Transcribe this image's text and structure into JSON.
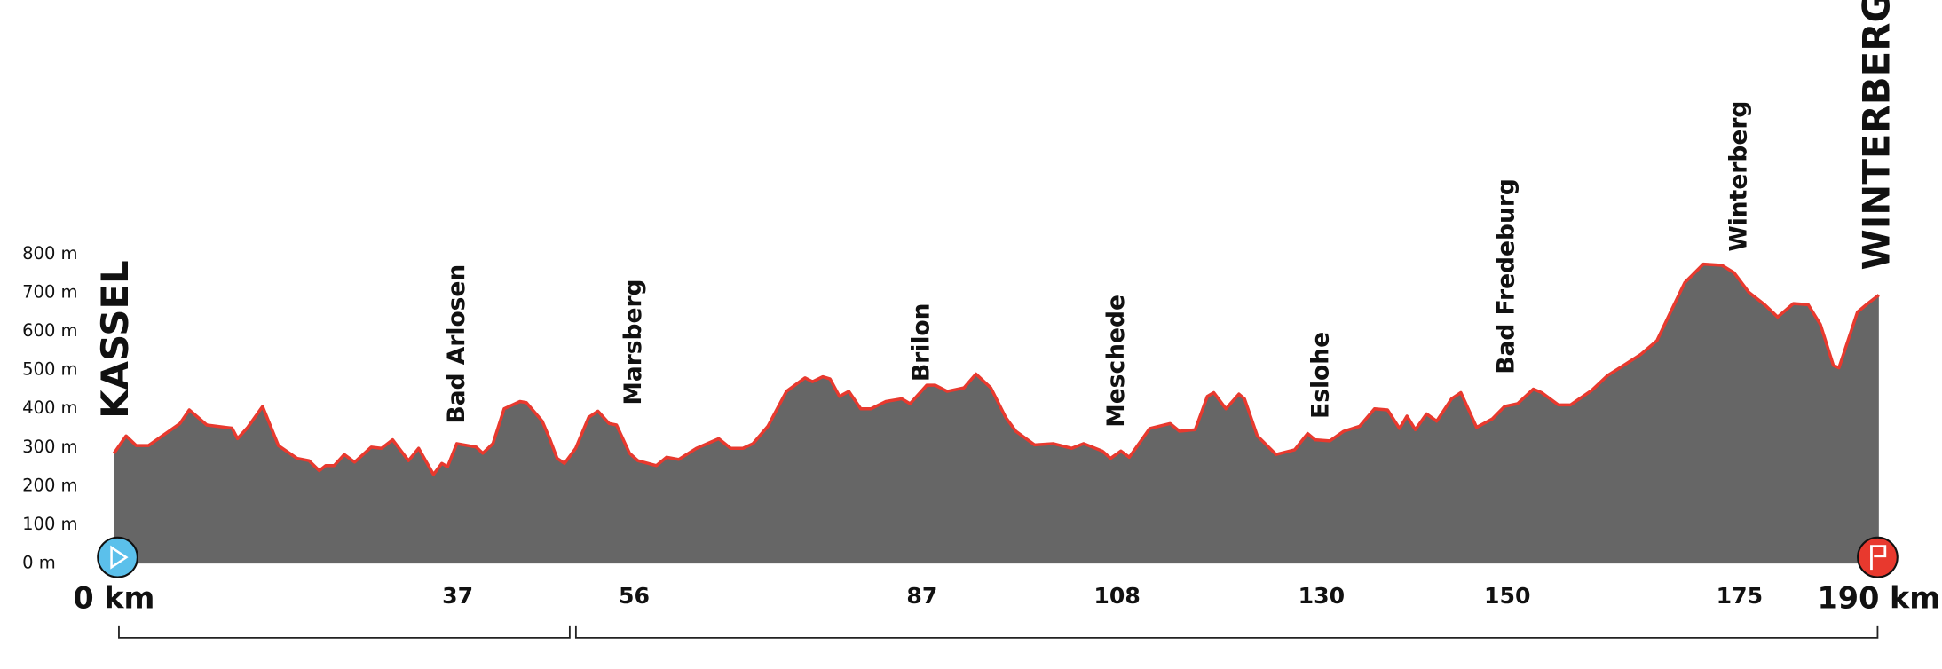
{
  "chart_data": {
    "type": "area",
    "color": "#e8392e",
    "fill": "#666666",
    "grid": false,
    "xlim": [
      0,
      190
    ],
    "ylim": [
      0,
      800
    ],
    "yticks": [
      {
        "value": 0,
        "label": "0 m"
      },
      {
        "value": 100,
        "label": "100 m"
      },
      {
        "value": 200,
        "label": "200 m"
      },
      {
        "value": 300,
        "label": "300 m"
      },
      {
        "value": 400,
        "label": "400 m"
      },
      {
        "value": 500,
        "label": "500 m"
      },
      {
        "value": 600,
        "label": "600 m"
      },
      {
        "value": 700,
        "label": "700 m"
      },
      {
        "value": 800,
        "label": "800 m"
      }
    ],
    "xticks": [
      {
        "value": 0,
        "label": "0 km"
      },
      37,
      56,
      87,
      108,
      130,
      150,
      175,
      {
        "value": 190,
        "label": "190 km"
      }
    ],
    "places": [
      {
        "name": "KASSEL",
        "km": 0
      },
      {
        "name": "Bad Arlosen",
        "km": 37
      },
      {
        "name": "Marsberg",
        "km": 56
      },
      {
        "name": "Brilon",
        "km": 87
      },
      {
        "name": "Meschede",
        "km": 108
      },
      {
        "name": "Eslohe",
        "km": 130
      },
      {
        "name": "Bad Fredeburg",
        "km": 150
      },
      {
        "name": "Winterberg",
        "km": 175
      },
      {
        "name": "WINTERBERG",
        "km": 190
      }
    ],
    "x": [
      0,
      1.3,
      2.4,
      3.7,
      7.1,
      8.1,
      10,
      12.7,
      13.3,
      14.4,
      16,
      17.7,
      19.7,
      21,
      22.1,
      22.8,
      23.7,
      24.8,
      25.9,
      27.7,
      28.8,
      30,
      31.7,
      32.8,
      34.4,
      35.3,
      35.9,
      36.9,
      39,
      39.7,
      40.8,
      42,
      43.7,
      44.4,
      46.1,
      46.9,
      47.7,
      48.5,
      49.7,
      51.1,
      52.1,
      53.3,
      54.1,
      55.5,
      56.4,
      58.4,
      59.5,
      60.8,
      62.7,
      65.1,
      66.4,
      67.7,
      68.8,
      70.4,
      72.4,
      74.4,
      75.2,
      76.3,
      77.1,
      78.1,
      79.1,
      80.4,
      81.5,
      83.1,
      84.8,
      85.7,
      87.5,
      88.4,
      89.7,
      91.5,
      92.8,
      94.4,
      96,
      97.1,
      99.1,
      101.1,
      103.1,
      104.4,
      106.4,
      107.3,
      108.4,
      109.3,
      111.5,
      113.7,
      114.7,
      116.4,
      117.7,
      118.4,
      119.7,
      121.1,
      121.7,
      123.1,
      125.1,
      127.1,
      128.5,
      129.3,
      130.9,
      132.4,
      134.1,
      135.7,
      137.1,
      138.4,
      139.2,
      140.1,
      141.3,
      142.4,
      144,
      145,
      146.7,
      148.4,
      149.7,
      151.1,
      152.8,
      153.7,
      155.5,
      156.8,
      159.1,
      160.8,
      162.7,
      164.4,
      166.1,
      167.7,
      169.1,
      171.1,
      173.1,
      174.4,
      176,
      177.7,
      179.1,
      180.8,
      182.4,
      183.7,
      185.1,
      185.7,
      187.7,
      188.8,
      190
    ],
    "values": [
      285,
      330,
      305,
      305,
      362,
      397,
      358,
      350,
      323,
      352,
      406,
      305,
      272,
      266,
      240,
      253,
      253,
      282,
      262,
      301,
      298,
      320,
      266,
      298,
      230,
      259,
      250,
      310,
      301,
      285,
      310,
      400,
      419,
      416,
      368,
      323,
      272,
      259,
      298,
      378,
      394,
      362,
      358,
      285,
      266,
      253,
      275,
      269,
      298,
      323,
      298,
      298,
      310,
      355,
      445,
      480,
      470,
      483,
      477,
      432,
      445,
      400,
      400,
      419,
      426,
      413,
      461,
      461,
      445,
      454,
      490,
      454,
      378,
      342,
      307,
      310,
      298,
      310,
      291,
      272,
      291,
      275,
      349,
      362,
      342,
      346,
      432,
      442,
      400,
      438,
      426,
      330,
      282,
      294,
      336,
      320,
      317,
      342,
      355,
      400,
      397,
      349,
      381,
      346,
      387,
      368,
      426,
      442,
      352,
      374,
      406,
      413,
      451,
      442,
      410,
      410,
      448,
      486,
      515,
      541,
      576,
      656,
      726,
      774,
      771,
      752,
      701,
      669,
      637,
      672,
      669,
      618,
      512,
      506,
      650,
      672,
      694
    ]
  }
}
